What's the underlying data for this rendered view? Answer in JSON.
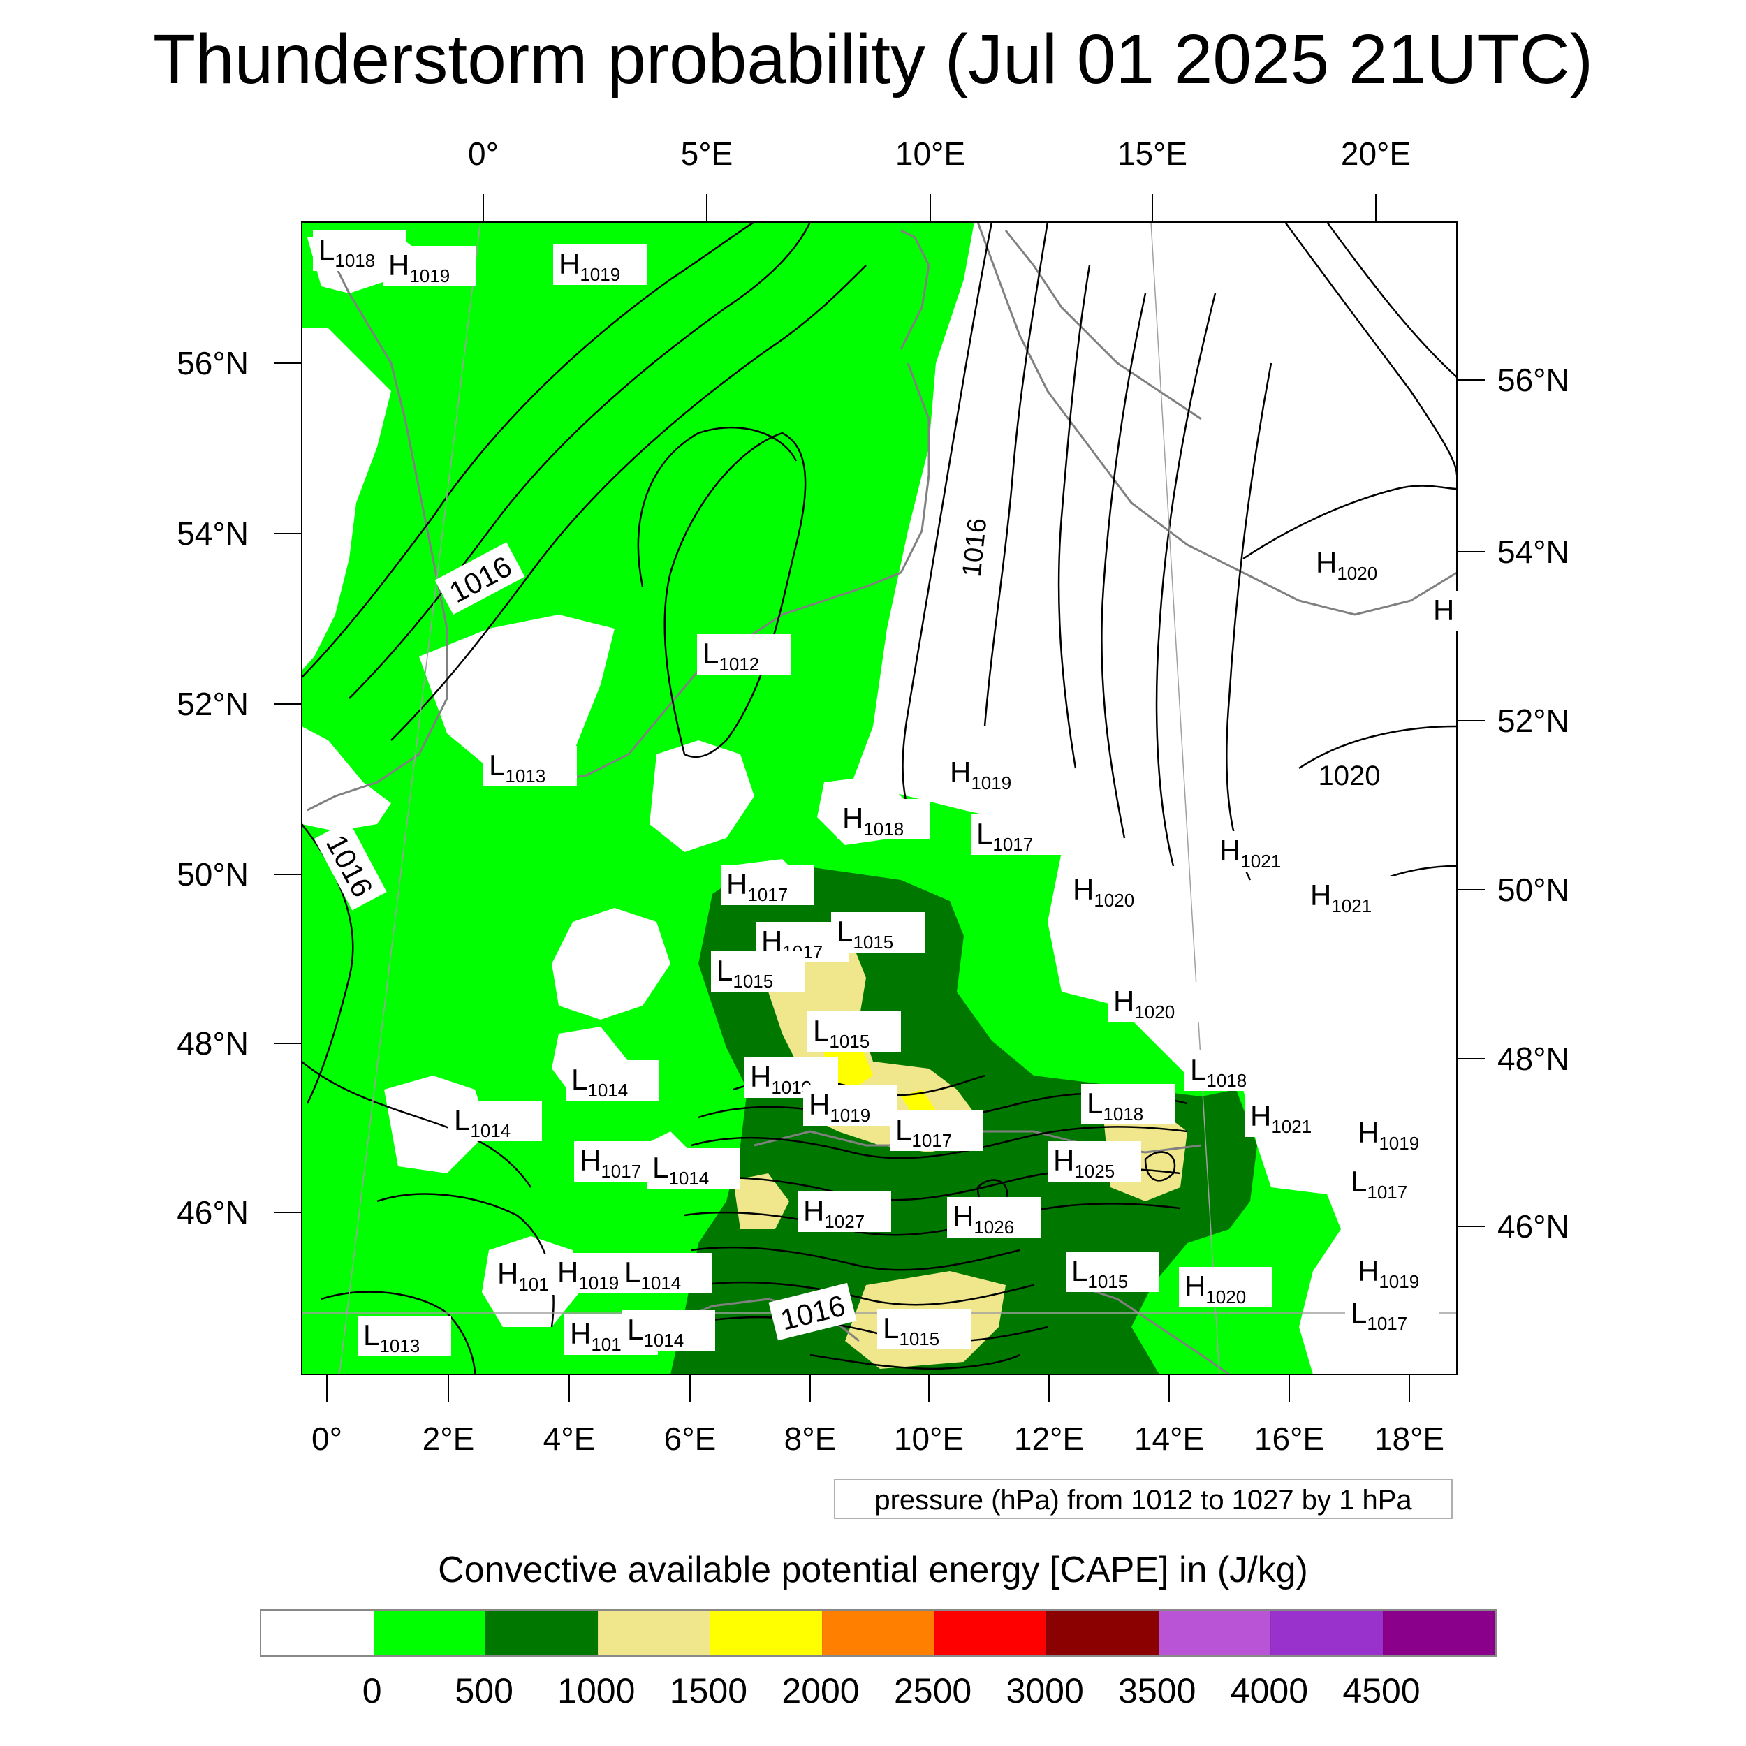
{
  "title": "Thunderstorm probability (Jul 01 2025 21UTC)",
  "top_axis_labels": [
    "0°",
    "5°E",
    "10°E",
    "15°E",
    "20°E"
  ],
  "bottom_axis_labels": [
    "0°",
    "2°E",
    "4°E",
    "6°E",
    "8°E",
    "10°E",
    "12°E",
    "14°E",
    "16°E",
    "18°E"
  ],
  "left_axis_labels": [
    "56°N",
    "54°N",
    "52°N",
    "50°N",
    "48°N",
    "46°N"
  ],
  "right_axis_labels": [
    "56°N",
    "54°N",
    "52°N",
    "50°N",
    "48°N",
    "46°N"
  ],
  "pressure_note": "pressure (hPa) from 1012 to 1027 by 1 hPa",
  "legend": {
    "title": "Convective available potential energy [CAPE] in (J/kg)",
    "colors": [
      "#ffffff",
      "#00ff00",
      "#007800",
      "#f0e68c",
      "#ffff00",
      "#ff8000",
      "#ff0000",
      "#8b0000",
      "#b954d7",
      "#9932cc",
      "#8b008b"
    ],
    "tick_labels": [
      "0",
      "500",
      "1000",
      "1500",
      "2000",
      "2500",
      "3000",
      "3500",
      "4000",
      "4500"
    ]
  },
  "colors": {
    "cape_0_500": "#00ff00",
    "cape_500_1000": "#007800",
    "cape_1000_1500": "#f0e68c",
    "cape_1500_2000": "#ffff00",
    "coastline": "#808080",
    "isobar": "#000000"
  },
  "isobar_labels": [
    "1016",
    "1016",
    "1016",
    "1016",
    "1020"
  ],
  "pressure_centers": [
    {
      "type": "L",
      "value": "1018"
    },
    {
      "type": "H",
      "value": "1019"
    },
    {
      "type": "H",
      "value": "1019"
    },
    {
      "type": "L",
      "value": "1012"
    },
    {
      "type": "L",
      "value": "1013"
    },
    {
      "type": "H",
      "value": "1020"
    },
    {
      "type": "H",
      "value": ""
    },
    {
      "type": "H",
      "value": "1019"
    },
    {
      "type": "H",
      "value": "1018"
    },
    {
      "type": "L",
      "value": "1017"
    },
    {
      "type": "H",
      "value": "1021"
    },
    {
      "type": "H",
      "value": "1017"
    },
    {
      "type": "H",
      "value": "1020"
    },
    {
      "type": "H",
      "value": "1021"
    },
    {
      "type": "H",
      "value": "1017"
    },
    {
      "type": "L",
      "value": "1015"
    },
    {
      "type": "L",
      "value": "1015"
    },
    {
      "type": "H",
      "value": "1020"
    },
    {
      "type": "L",
      "value": "1015"
    },
    {
      "type": "L",
      "value": "1014"
    },
    {
      "type": "H",
      "value": "1019"
    },
    {
      "type": "L",
      "value": "1018"
    },
    {
      "type": "H",
      "value": "1019"
    },
    {
      "type": "L",
      "value": "1018"
    },
    {
      "type": "H",
      "value": "1021"
    },
    {
      "type": "L",
      "value": "1014"
    },
    {
      "type": "L",
      "value": "1017"
    },
    {
      "type": "H",
      "value": "1019"
    },
    {
      "type": "H",
      "value": "1017"
    },
    {
      "type": "L",
      "value": "1014"
    },
    {
      "type": "H",
      "value": "1025"
    },
    {
      "type": "L",
      "value": "1017"
    },
    {
      "type": "H",
      "value": "1027"
    },
    {
      "type": "H",
      "value": "1026"
    },
    {
      "type": "H",
      "value": "101"
    },
    {
      "type": "H",
      "value": "101"
    },
    {
      "type": "H",
      "value": "1019"
    },
    {
      "type": "L",
      "value": "1014"
    },
    {
      "type": "L",
      "value": "1015"
    },
    {
      "type": "H",
      "value": "1019"
    },
    {
      "type": "H",
      "value": "1020"
    },
    {
      "type": "L",
      "value": "1017"
    },
    {
      "type": "L",
      "value": "1013"
    },
    {
      "type": "H",
      "value": "1019"
    },
    {
      "type": "L",
      "value": "1014"
    },
    {
      "type": "L",
      "value": "1015"
    }
  ]
}
